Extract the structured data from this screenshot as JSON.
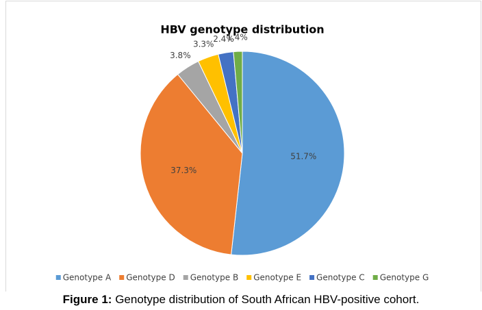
{
  "chart_data": {
    "type": "pie",
    "title": "HBV genotype distribution",
    "categories": [
      "Genotype A",
      "Genotype D",
      "Genotype B",
      "Genotype E",
      "Genotype C",
      "Genotype G"
    ],
    "values": [
      51.7,
      37.3,
      3.8,
      3.3,
      2.4,
      1.4
    ],
    "value_labels": [
      "51.7%",
      "37.3%",
      "3.8%",
      "3.3%",
      "2.4%",
      "1.4%"
    ],
    "colors": [
      "#5b9bd5",
      "#ed7d31",
      "#a5a5a5",
      "#ffc000",
      "#4472c4",
      "#70ad47"
    ],
    "legend": "bottom"
  },
  "caption": {
    "label": "Figure 1:",
    "text": "Genotype distribution of South African HBV-positive cohort."
  }
}
